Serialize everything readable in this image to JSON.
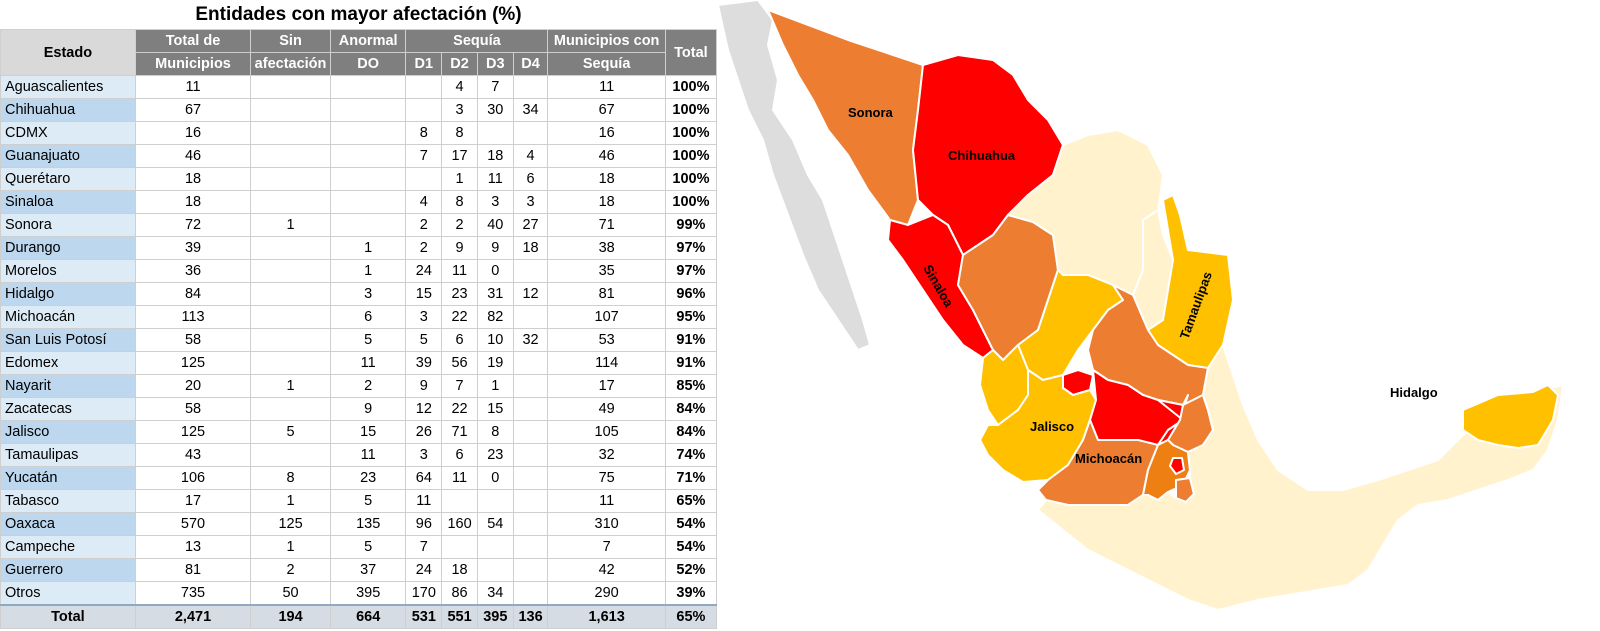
{
  "title": "Entidades con mayor afectación (%)",
  "headers": {
    "estado": "Estado",
    "total_municipios": [
      "Total de",
      "Municipios"
    ],
    "sin_afectacion": [
      "Sin",
      "afectación"
    ],
    "anormal": [
      "Anormal",
      "DO"
    ],
    "sequia": "Sequía",
    "d1": "D1",
    "d2": "D2",
    "d3": "D3",
    "d4": "D4",
    "municipios_sequia": [
      "Municipios con",
      "Sequía"
    ],
    "total": "Total"
  },
  "rows": [
    {
      "estado": "Aguascalientes",
      "total": "11",
      "sin": "",
      "do": "",
      "d1": "",
      "d2": "4",
      "d3": "7",
      "d4": "",
      "con": "11",
      "pct": "100%"
    },
    {
      "estado": "Chihuahua",
      "total": "67",
      "sin": "",
      "do": "",
      "d1": "",
      "d2": "3",
      "d3": "30",
      "d4": "34",
      "con": "67",
      "pct": "100%"
    },
    {
      "estado": "CDMX",
      "total": "16",
      "sin": "",
      "do": "",
      "d1": "8",
      "d2": "8",
      "d3": "",
      "d4": "",
      "con": "16",
      "pct": "100%"
    },
    {
      "estado": "Guanajuato",
      "total": "46",
      "sin": "",
      "do": "",
      "d1": "7",
      "d2": "17",
      "d3": "18",
      "d4": "4",
      "con": "46",
      "pct": "100%"
    },
    {
      "estado": "Querétaro",
      "total": "18",
      "sin": "",
      "do": "",
      "d1": "",
      "d2": "1",
      "d3": "11",
      "d4": "6",
      "con": "18",
      "pct": "100%"
    },
    {
      "estado": "Sinaloa",
      "total": "18",
      "sin": "",
      "do": "",
      "d1": "4",
      "d2": "8",
      "d3": "3",
      "d4": "3",
      "con": "18",
      "pct": "100%"
    },
    {
      "estado": "Sonora",
      "total": "72",
      "sin": "1",
      "do": "",
      "d1": "2",
      "d2": "2",
      "d3": "40",
      "d4": "27",
      "con": "71",
      "pct": "99%"
    },
    {
      "estado": "Durango",
      "total": "39",
      "sin": "",
      "do": "1",
      "d1": "2",
      "d2": "9",
      "d3": "9",
      "d4": "18",
      "con": "38",
      "pct": "97%"
    },
    {
      "estado": "Morelos",
      "total": "36",
      "sin": "",
      "do": "1",
      "d1": "24",
      "d2": "11",
      "d3": "0",
      "d4": "",
      "con": "35",
      "pct": "97%"
    },
    {
      "estado": "Hidalgo",
      "total": "84",
      "sin": "",
      "do": "3",
      "d1": "15",
      "d2": "23",
      "d3": "31",
      "d4": "12",
      "con": "81",
      "pct": "96%"
    },
    {
      "estado": "Michoacán",
      "total": "113",
      "sin": "",
      "do": "6",
      "d1": "3",
      "d2": "22",
      "d3": "82",
      "d4": "",
      "con": "107",
      "pct": "95%"
    },
    {
      "estado": "San Luis Potosí",
      "total": "58",
      "sin": "",
      "do": "5",
      "d1": "5",
      "d2": "6",
      "d3": "10",
      "d4": "32",
      "con": "53",
      "pct": "91%"
    },
    {
      "estado": "Edomex",
      "total": "125",
      "sin": "",
      "do": "11",
      "d1": "39",
      "d2": "56",
      "d3": "19",
      "d4": "",
      "con": "114",
      "pct": "91%"
    },
    {
      "estado": "Nayarit",
      "total": "20",
      "sin": "1",
      "do": "2",
      "d1": "9",
      "d2": "7",
      "d3": "1",
      "d4": "",
      "con": "17",
      "pct": "85%"
    },
    {
      "estado": "Zacatecas",
      "total": "58",
      "sin": "",
      "do": "9",
      "d1": "12",
      "d2": "22",
      "d3": "15",
      "d4": "",
      "con": "49",
      "pct": "84%"
    },
    {
      "estado": "Jalisco",
      "total": "125",
      "sin": "5",
      "do": "15",
      "d1": "26",
      "d2": "71",
      "d3": "8",
      "d4": "",
      "con": "105",
      "pct": "84%"
    },
    {
      "estado": "Tamaulipas",
      "total": "43",
      "sin": "",
      "do": "11",
      "d1": "3",
      "d2": "6",
      "d3": "23",
      "d4": "",
      "con": "32",
      "pct": "74%"
    },
    {
      "estado": "Yucatán",
      "total": "106",
      "sin": "8",
      "do": "23",
      "d1": "64",
      "d2": "11",
      "d3": "0",
      "d4": "",
      "con": "75",
      "pct": "71%"
    },
    {
      "estado": "Tabasco",
      "total": "17",
      "sin": "1",
      "do": "5",
      "d1": "11",
      "d2": "",
      "d3": "",
      "d4": "",
      "con": "11",
      "pct": "65%"
    },
    {
      "estado": "Oaxaca",
      "total": "570",
      "sin": "125",
      "do": "135",
      "d1": "96",
      "d2": "160",
      "d3": "54",
      "d4": "",
      "con": "310",
      "pct": "54%"
    },
    {
      "estado": "Campeche",
      "total": "13",
      "sin": "1",
      "do": "5",
      "d1": "7",
      "d2": "",
      "d3": "",
      "d4": "",
      "con": "7",
      "pct": "54%"
    },
    {
      "estado": "Guerrero",
      "total": "81",
      "sin": "2",
      "do": "37",
      "d1": "24",
      "d2": "18",
      "d3": "",
      "d4": "",
      "con": "42",
      "pct": "52%"
    },
    {
      "estado": "Otros",
      "total": "735",
      "sin": "50",
      "do": "395",
      "d1": "170",
      "d2": "86",
      "d3": "34",
      "d4": "",
      "con": "290",
      "pct": "39%"
    }
  ],
  "totals": {
    "estado": "Total",
    "total": "2,471",
    "sin": "194",
    "do": "664",
    "d1": "531",
    "d2": "551",
    "d3": "395",
    "d4": "136",
    "con": "1,613",
    "pct": "65%"
  },
  "map_labels": {
    "sonora": "Sonora",
    "chihuahua": "Chihuahua",
    "sinaloa": "Sinaloa",
    "tamaulipas": "Tamaulipas",
    "jalisco": "Jalisco",
    "michoacan": "Michoacán",
    "hidalgo": "Hidalgo"
  },
  "colors": {
    "red": "#ff0000",
    "dark_orange": "#ed7d31",
    "orange": "#ee7f12",
    "yellow": "#ffc000",
    "light_yellow": "#ffe699",
    "pale": "#fff2cc",
    "grey": "#dddddd",
    "header_grey": "#7f7f7f"
  },
  "chart_data": {
    "type": "table",
    "title": "Entidades con mayor afectación (%)",
    "columns": [
      "Estado",
      "Total de Municipios",
      "Sin afectación",
      "Anormal DO",
      "D1",
      "D2",
      "D3",
      "D4",
      "Municipios con Sequía",
      "Total"
    ],
    "rows": [
      [
        "Aguascalientes",
        11,
        null,
        null,
        null,
        4,
        7,
        null,
        11,
        "100%"
      ],
      [
        "Chihuahua",
        67,
        null,
        null,
        null,
        3,
        30,
        34,
        67,
        "100%"
      ],
      [
        "CDMX",
        16,
        null,
        null,
        8,
        8,
        null,
        null,
        16,
        "100%"
      ],
      [
        "Guanajuato",
        46,
        null,
        null,
        7,
        17,
        18,
        4,
        46,
        "100%"
      ],
      [
        "Querétaro",
        18,
        null,
        null,
        null,
        1,
        11,
        6,
        18,
        "100%"
      ],
      [
        "Sinaloa",
        18,
        null,
        null,
        4,
        8,
        3,
        3,
        18,
        "100%"
      ],
      [
        "Sonora",
        72,
        1,
        null,
        2,
        2,
        40,
        27,
        71,
        "99%"
      ],
      [
        "Durango",
        39,
        null,
        1,
        2,
        9,
        9,
        18,
        38,
        "97%"
      ],
      [
        "Morelos",
        36,
        null,
        1,
        24,
        11,
        0,
        null,
        35,
        "97%"
      ],
      [
        "Hidalgo",
        84,
        null,
        3,
        15,
        23,
        31,
        12,
        81,
        "96%"
      ],
      [
        "Michoacán",
        113,
        null,
        6,
        3,
        22,
        82,
        null,
        107,
        "95%"
      ],
      [
        "San Luis Potosí",
        58,
        null,
        5,
        5,
        6,
        10,
        32,
        53,
        "91%"
      ],
      [
        "Edomex",
        125,
        null,
        11,
        39,
        56,
        19,
        null,
        114,
        "91%"
      ],
      [
        "Nayarit",
        20,
        1,
        2,
        9,
        7,
        1,
        null,
        17,
        "85%"
      ],
      [
        "Zacatecas",
        58,
        null,
        9,
        12,
        22,
        15,
        null,
        49,
        "84%"
      ],
      [
        "Jalisco",
        125,
        5,
        15,
        26,
        71,
        8,
        null,
        105,
        "84%"
      ],
      [
        "Tamaulipas",
        43,
        null,
        11,
        3,
        6,
        23,
        null,
        32,
        "74%"
      ],
      [
        "Yucatán",
        106,
        8,
        23,
        64,
        11,
        0,
        null,
        75,
        "71%"
      ],
      [
        "Tabasco",
        17,
        1,
        5,
        11,
        null,
        null,
        null,
        11,
        "65%"
      ],
      [
        "Oaxaca",
        570,
        125,
        135,
        96,
        160,
        54,
        null,
        310,
        "54%"
      ],
      [
        "Campeche",
        13,
        1,
        5,
        7,
        null,
        null,
        null,
        7,
        "54%"
      ],
      [
        "Guerrero",
        81,
        2,
        37,
        24,
        18,
        null,
        null,
        42,
        "52%"
      ],
      [
        "Otros",
        735,
        50,
        395,
        170,
        86,
        34,
        null,
        290,
        "39%"
      ]
    ],
    "totals": [
      "Total",
      2471,
      194,
      664,
      531,
      551,
      395,
      136,
      1613,
      "65%"
    ]
  }
}
